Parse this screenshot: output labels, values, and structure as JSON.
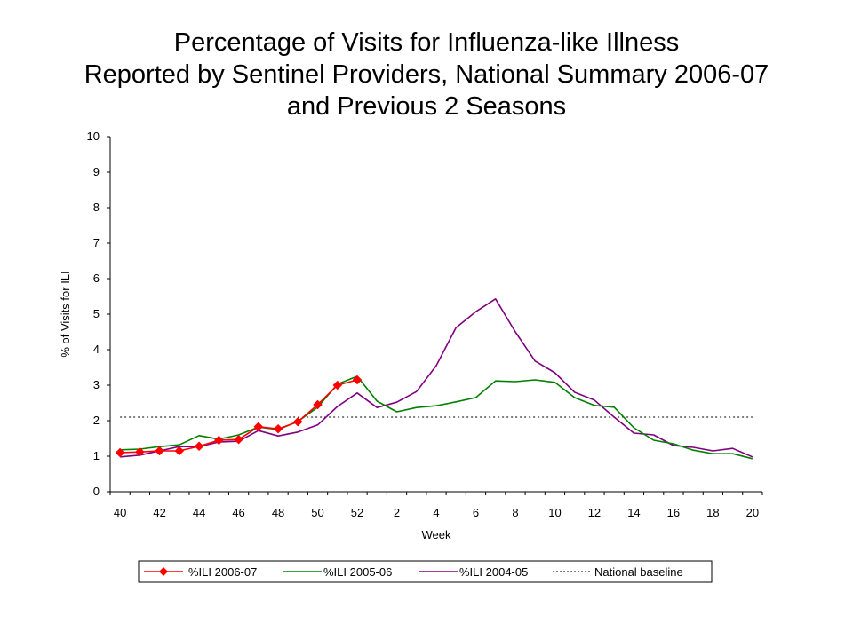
{
  "chart_data": {
    "type": "line",
    "title_lines": [
      "Percentage of Visits for Influenza-like Illness",
      "Reported by Sentinel Providers, National Summary 2006-07",
      "and Previous 2 Seasons"
    ],
    "xlabel": "Week",
    "ylabel": "% of Visits for ILI",
    "ylim": [
      0,
      10
    ],
    "yticks": [
      "0",
      "1",
      "2",
      "3",
      "4",
      "5",
      "6",
      "7",
      "8",
      "9",
      "10"
    ],
    "weeks": [
      "40",
      "41",
      "42",
      "43",
      "44",
      "45",
      "46",
      "47",
      "48",
      "49",
      "50",
      "51",
      "52",
      "1",
      "2",
      "3",
      "4",
      "5",
      "6",
      "7",
      "8",
      "9",
      "10",
      "11",
      "12",
      "13",
      "14",
      "15",
      "16",
      "17",
      "18",
      "19",
      "20"
    ],
    "xtick_labels": [
      "40",
      "42",
      "44",
      "46",
      "48",
      "50",
      "52",
      "2",
      "4",
      "6",
      "8",
      "10",
      "12",
      "14",
      "16",
      "18",
      "20"
    ],
    "grid": false,
    "legend_position": "bottom",
    "series": [
      {
        "name": "%ILI 2006-07",
        "color": "#ff0000",
        "marker": "diamond",
        "marker_color": "#ff0000",
        "values": [
          1.1,
          1.12,
          1.15,
          1.15,
          1.28,
          1.45,
          1.47,
          1.83,
          1.77,
          1.97,
          2.45,
          3.0,
          3.15
        ]
      },
      {
        "name": "%ILI 2005-06",
        "color": "#008000",
        "marker": "none",
        "values": [
          1.18,
          1.2,
          1.27,
          1.32,
          1.58,
          1.48,
          1.6,
          1.82,
          1.75,
          1.98,
          2.38,
          3.03,
          3.25,
          2.55,
          2.25,
          2.37,
          2.42,
          2.53,
          2.65,
          3.12,
          3.1,
          3.15,
          3.08,
          2.65,
          2.43,
          2.38,
          1.8,
          1.45,
          1.35,
          1.17,
          1.07,
          1.07,
          0.93
        ]
      },
      {
        "name": "%ILI 2004-05",
        "color": "#800080",
        "marker": "none",
        "values": [
          0.98,
          1.03,
          1.15,
          1.27,
          1.27,
          1.4,
          1.42,
          1.72,
          1.57,
          1.68,
          1.88,
          2.4,
          2.78,
          2.37,
          2.52,
          2.82,
          3.55,
          4.62,
          5.07,
          5.43,
          4.5,
          3.68,
          3.35,
          2.8,
          2.58,
          2.1,
          1.65,
          1.6,
          1.3,
          1.25,
          1.15,
          1.22,
          0.98
        ]
      }
    ],
    "baseline": {
      "name": "National baseline",
      "value": 2.1,
      "color": "#000000",
      "style": "dotted"
    }
  }
}
